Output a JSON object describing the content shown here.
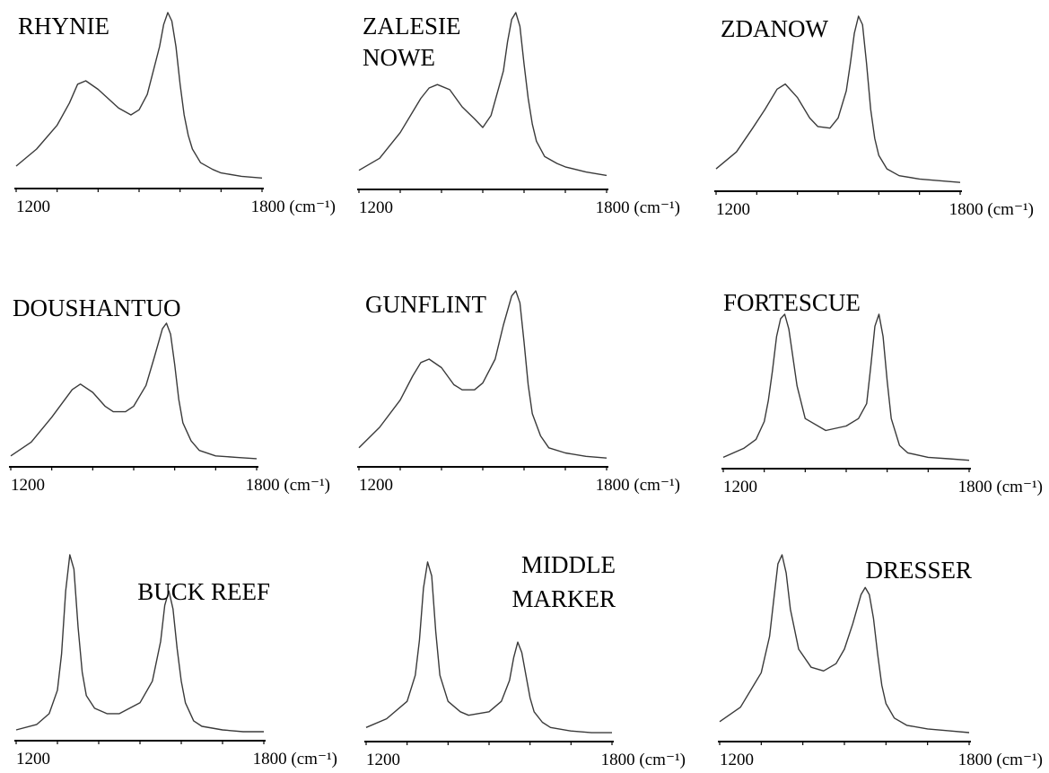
{
  "chart_data": [
    {
      "type": "line",
      "title": [
        "RHYNIE"
      ],
      "x_ticks": [
        "1200",
        "1800 (cm⁻¹)"
      ],
      "xlim": [
        1200,
        1800
      ],
      "x": [
        1200,
        1250,
        1300,
        1330,
        1350,
        1370,
        1400,
        1450,
        1480,
        1500,
        1520,
        1550,
        1560,
        1570,
        1580,
        1590,
        1600,
        1610,
        1620,
        1630,
        1650,
        1680,
        1700,
        1750,
        1800
      ],
      "y": [
        0.1,
        0.2,
        0.34,
        0.47,
        0.58,
        0.6,
        0.55,
        0.44,
        0.4,
        0.43,
        0.52,
        0.8,
        0.93,
        1.0,
        0.95,
        0.8,
        0.58,
        0.4,
        0.28,
        0.2,
        0.12,
        0.08,
        0.06,
        0.04,
        0.03
      ]
    },
    {
      "type": "line",
      "title": [
        "ZALESIE",
        "NOWE"
      ],
      "x_ticks": [
        "1200",
        "1800 (cm⁻¹)"
      ],
      "xlim": [
        1200,
        1800
      ],
      "x": [
        1200,
        1250,
        1300,
        1350,
        1370,
        1390,
        1420,
        1450,
        1480,
        1500,
        1520,
        1550,
        1560,
        1570,
        1580,
        1590,
        1600,
        1610,
        1620,
        1630,
        1650,
        1680,
        1700,
        1750,
        1800
      ],
      "y": [
        0.08,
        0.15,
        0.3,
        0.5,
        0.56,
        0.58,
        0.55,
        0.45,
        0.38,
        0.33,
        0.4,
        0.66,
        0.83,
        0.96,
        1.0,
        0.92,
        0.7,
        0.5,
        0.35,
        0.25,
        0.16,
        0.12,
        0.1,
        0.07,
        0.05
      ]
    },
    {
      "type": "line",
      "title": [
        "ZDANOW"
      ],
      "x_ticks": [
        "1200",
        "1800 (cm⁻¹)"
      ],
      "xlim": [
        1200,
        1800
      ],
      "x": [
        1200,
        1250,
        1290,
        1320,
        1350,
        1370,
        1400,
        1430,
        1450,
        1480,
        1500,
        1520,
        1530,
        1540,
        1550,
        1560,
        1570,
        1580,
        1590,
        1600,
        1620,
        1650,
        1700,
        1750,
        1800
      ],
      "y": [
        0.1,
        0.2,
        0.34,
        0.45,
        0.57,
        0.6,
        0.52,
        0.4,
        0.35,
        0.34,
        0.4,
        0.56,
        0.72,
        0.9,
        1.0,
        0.95,
        0.72,
        0.45,
        0.28,
        0.18,
        0.1,
        0.06,
        0.04,
        0.03,
        0.02
      ]
    },
    {
      "type": "line",
      "title": [
        "DOUSHANTUO"
      ],
      "x_ticks": [
        "1200",
        "1800 (cm⁻¹)"
      ],
      "xlim": [
        1200,
        1800
      ],
      "x": [
        1200,
        1250,
        1300,
        1330,
        1350,
        1370,
        1400,
        1430,
        1450,
        1480,
        1500,
        1530,
        1550,
        1570,
        1580,
        1590,
        1600,
        1610,
        1620,
        1640,
        1660,
        1700,
        1750,
        1800
      ],
      "y": [
        0.04,
        0.14,
        0.32,
        0.44,
        0.52,
        0.56,
        0.5,
        0.4,
        0.36,
        0.36,
        0.4,
        0.55,
        0.75,
        0.96,
        1.0,
        0.92,
        0.7,
        0.45,
        0.28,
        0.15,
        0.08,
        0.04,
        0.03,
        0.02
      ]
    },
    {
      "type": "line",
      "title": [
        "GUNFLINT"
      ],
      "x_ticks": [
        "1200",
        "1800 (cm⁻¹)"
      ],
      "xlim": [
        1200,
        1800
      ],
      "x": [
        1200,
        1250,
        1300,
        1330,
        1350,
        1370,
        1400,
        1430,
        1450,
        1480,
        1500,
        1530,
        1550,
        1570,
        1580,
        1590,
        1600,
        1610,
        1620,
        1640,
        1660,
        1700,
        1750,
        1800
      ],
      "y": [
        0.08,
        0.2,
        0.36,
        0.5,
        0.58,
        0.6,
        0.55,
        0.45,
        0.42,
        0.42,
        0.46,
        0.6,
        0.8,
        0.97,
        1.0,
        0.93,
        0.7,
        0.45,
        0.28,
        0.15,
        0.08,
        0.05,
        0.03,
        0.02
      ]
    },
    {
      "type": "line",
      "title": [
        "FORTESCUE"
      ],
      "x_ticks": [
        "1200",
        "1800 (cm⁻¹)"
      ],
      "xlim": [
        1200,
        1800
      ],
      "x": [
        1200,
        1250,
        1280,
        1300,
        1310,
        1320,
        1330,
        1340,
        1350,
        1360,
        1380,
        1400,
        1450,
        1500,
        1530,
        1550,
        1560,
        1570,
        1580,
        1590,
        1600,
        1610,
        1630,
        1650,
        1700,
        1750,
        1800
      ],
      "y": [
        0.04,
        0.1,
        0.16,
        0.28,
        0.42,
        0.62,
        0.85,
        0.97,
        1.0,
        0.9,
        0.52,
        0.3,
        0.22,
        0.25,
        0.3,
        0.4,
        0.65,
        0.92,
        1.0,
        0.85,
        0.55,
        0.3,
        0.12,
        0.07,
        0.04,
        0.03,
        0.02
      ]
    },
    {
      "type": "line",
      "title": [
        "BUCK REEF"
      ],
      "x_ticks": [
        "1200",
        "1800 (cm⁻¹)"
      ],
      "xlim": [
        1200,
        1800
      ],
      "x": [
        1200,
        1250,
        1280,
        1300,
        1310,
        1320,
        1330,
        1340,
        1350,
        1360,
        1370,
        1390,
        1420,
        1450,
        1500,
        1530,
        1550,
        1560,
        1570,
        1580,
        1590,
        1600,
        1610,
        1630,
        1650,
        1700,
        1750,
        1800
      ],
      "y": [
        0.03,
        0.06,
        0.12,
        0.25,
        0.45,
        0.8,
        1.0,
        0.92,
        0.6,
        0.35,
        0.22,
        0.15,
        0.12,
        0.12,
        0.18,
        0.3,
        0.52,
        0.72,
        0.8,
        0.7,
        0.48,
        0.3,
        0.18,
        0.08,
        0.05,
        0.03,
        0.02,
        0.02
      ]
    },
    {
      "type": "line",
      "title": [
        "MIDDLE",
        "MARKER"
      ],
      "x_ticks": [
        "1200",
        "1800 (cm⁻¹)"
      ],
      "xlim": [
        1200,
        1800
      ],
      "x": [
        1200,
        1250,
        1300,
        1320,
        1330,
        1340,
        1350,
        1360,
        1370,
        1380,
        1400,
        1430,
        1450,
        1500,
        1530,
        1550,
        1560,
        1570,
        1580,
        1590,
        1600,
        1610,
        1630,
        1650,
        1700,
        1750,
        1800
      ],
      "y": [
        0.05,
        0.1,
        0.2,
        0.35,
        0.55,
        0.85,
        1.0,
        0.92,
        0.6,
        0.35,
        0.2,
        0.14,
        0.12,
        0.14,
        0.2,
        0.32,
        0.45,
        0.54,
        0.48,
        0.35,
        0.22,
        0.14,
        0.08,
        0.05,
        0.03,
        0.02,
        0.02
      ]
    },
    {
      "type": "line",
      "title": [
        "DRESSER"
      ],
      "x_ticks": [
        "1200",
        "1800 (cm⁻¹)"
      ],
      "xlim": [
        1200,
        1800
      ],
      "x": [
        1200,
        1250,
        1300,
        1320,
        1330,
        1340,
        1350,
        1360,
        1370,
        1390,
        1420,
        1450,
        1480,
        1500,
        1520,
        1540,
        1550,
        1560,
        1570,
        1580,
        1590,
        1600,
        1620,
        1650,
        1700,
        1750,
        1800
      ],
      "y": [
        0.08,
        0.16,
        0.35,
        0.55,
        0.75,
        0.95,
        1.0,
        0.9,
        0.7,
        0.48,
        0.38,
        0.36,
        0.4,
        0.48,
        0.62,
        0.78,
        0.82,
        0.78,
        0.65,
        0.45,
        0.28,
        0.18,
        0.1,
        0.06,
        0.04,
        0.03,
        0.02
      ]
    }
  ]
}
